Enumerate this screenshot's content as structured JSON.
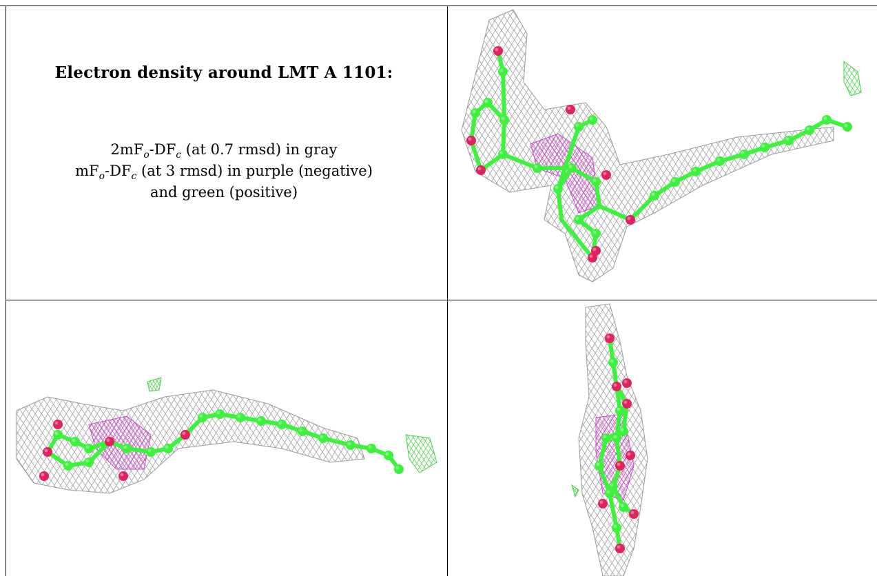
{
  "caption": {
    "title": "Electron density around LMT A 1101:",
    "line1": {
      "prefix": "2mF",
      "sub1": "o",
      "mid": "-DF",
      "sub2": "c",
      "suffix": " (at 0.7 rmsd) in gray"
    },
    "line2": {
      "prefix": "mF",
      "sub1": "o",
      "mid": "-DF",
      "sub2": "c",
      "suffix": " (at 3 rmsd) in purple (negative)"
    },
    "line3": "and green (positive)"
  },
  "colors": {
    "mesh_gray": "#8f8f8f",
    "mesh_purple": "#cc33cc",
    "mesh_green": "#33cc33",
    "carbon_green": "#3df23d",
    "oxygen_pink": "#e0225f",
    "border": "#000000"
  },
  "panels": [
    {
      "id": "view-top-right",
      "icon": "molecule-density-view"
    },
    {
      "id": "view-bottom-left",
      "icon": "molecule-density-view"
    },
    {
      "id": "view-bottom-right",
      "icon": "molecule-density-view"
    }
  ]
}
